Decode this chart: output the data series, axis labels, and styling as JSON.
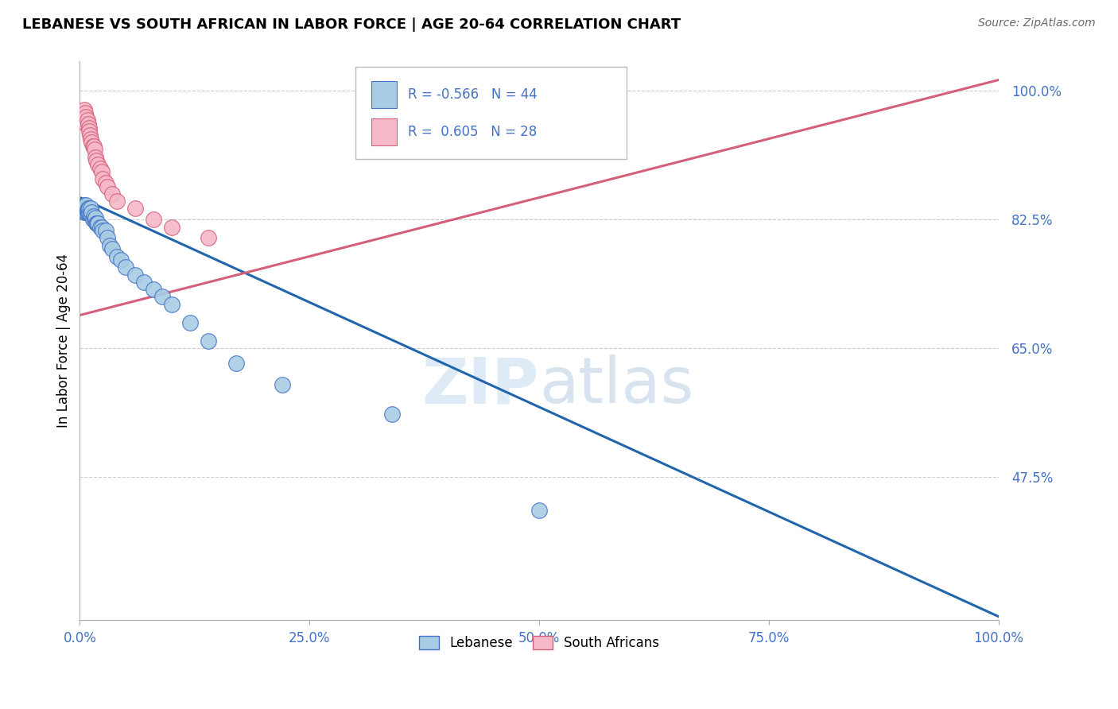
{
  "title": "LEBANESE VS SOUTH AFRICAN IN LABOR FORCE | AGE 20-64 CORRELATION CHART",
  "source": "Source: ZipAtlas.com",
  "ylabel": "In Labor Force | Age 20-64",
  "r_lebanese": -0.566,
  "n_lebanese": 44,
  "r_south_african": 0.605,
  "n_south_african": 28,
  "right_ytick_labels": [
    "100.0%",
    "82.5%",
    "65.0%",
    "47.5%"
  ],
  "right_ytick_values": [
    1.0,
    0.825,
    0.65,
    0.475
  ],
  "xtick_labels": [
    "0.0%",
    "25.0%",
    "50.0%",
    "75.0%",
    "100.0%"
  ],
  "xtick_values": [
    0.0,
    0.25,
    0.5,
    0.75,
    1.0
  ],
  "xlim": [
    0.0,
    1.0
  ],
  "ylim": [
    0.28,
    1.04
  ],
  "blue_fill": "#a8cce4",
  "blue_edge": "#4472c4",
  "pink_fill": "#f4b8c8",
  "pink_edge": "#d45f7a",
  "blue_line": "#2166ac",
  "pink_line": "#d45f7a",
  "text_color": "#4472c4",
  "grid_color": "#cccccc",
  "blue_line_x0": 0.0,
  "blue_line_y0": 0.855,
  "blue_line_x1": 1.0,
  "blue_line_y1": 0.285,
  "pink_line_x0": 0.0,
  "pink_line_y0": 0.695,
  "pink_line_x1": 1.0,
  "pink_line_y1": 1.015,
  "lebanese_x": [
    0.005,
    0.005,
    0.005,
    0.007,
    0.007,
    0.007,
    0.008,
    0.008,
    0.009,
    0.009,
    0.01,
    0.01,
    0.012,
    0.012,
    0.013,
    0.013,
    0.014,
    0.015,
    0.016,
    0.017,
    0.018,
    0.019,
    0.02,
    0.022,
    0.024,
    0.025,
    0.028,
    0.03,
    0.033,
    0.035,
    0.04,
    0.045,
    0.05,
    0.06,
    0.07,
    0.08,
    0.09,
    0.1,
    0.12,
    0.14,
    0.17,
    0.22,
    0.34,
    0.5
  ],
  "lebanese_y": [
    0.835,
    0.84,
    0.845,
    0.835,
    0.84,
    0.845,
    0.835,
    0.838,
    0.835,
    0.84,
    0.835,
    0.84,
    0.835,
    0.84,
    0.83,
    0.835,
    0.825,
    0.83,
    0.825,
    0.828,
    0.82,
    0.82,
    0.82,
    0.815,
    0.815,
    0.81,
    0.81,
    0.8,
    0.79,
    0.785,
    0.775,
    0.77,
    0.76,
    0.75,
    0.74,
    0.73,
    0.72,
    0.71,
    0.685,
    0.66,
    0.63,
    0.6,
    0.56,
    0.43
  ],
  "south_african_x": [
    0.005,
    0.006,
    0.007,
    0.007,
    0.008,
    0.009,
    0.01,
    0.01,
    0.011,
    0.012,
    0.013,
    0.014,
    0.015,
    0.016,
    0.017,
    0.018,
    0.02,
    0.022,
    0.024,
    0.025,
    0.028,
    0.03,
    0.035,
    0.04,
    0.06,
    0.08,
    0.1,
    0.14
  ],
  "south_african_y": [
    0.975,
    0.97,
    0.965,
    0.955,
    0.96,
    0.955,
    0.95,
    0.945,
    0.94,
    0.935,
    0.93,
    0.925,
    0.925,
    0.92,
    0.91,
    0.905,
    0.9,
    0.895,
    0.89,
    0.88,
    0.875,
    0.87,
    0.86,
    0.85,
    0.84,
    0.825,
    0.815,
    0.8
  ]
}
